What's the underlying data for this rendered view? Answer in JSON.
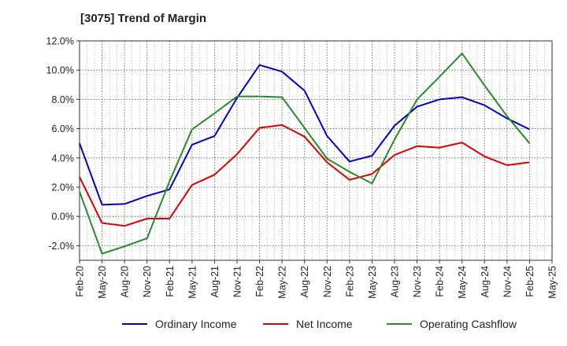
{
  "chart_data": {
    "type": "line",
    "title": "[3075]  Trend of Margin",
    "x": [
      "Feb-20",
      "May-20",
      "Aug-20",
      "Nov-20",
      "Feb-21",
      "May-21",
      "Aug-21",
      "Nov-21",
      "Feb-22",
      "May-22",
      "Aug-22",
      "Nov-22",
      "Feb-23",
      "May-23",
      "Aug-23",
      "Nov-23",
      "Feb-24",
      "May-24",
      "Aug-24",
      "Nov-24",
      "Feb-25",
      "May-25"
    ],
    "yticks": [
      "12.0%",
      "10.0%",
      "8.0%",
      "6.0%",
      "4.0%",
      "2.0%",
      "0.0%",
      "-2.0%"
    ],
    "ylim": [
      -3,
      12
    ],
    "grid": true,
    "legend_position": "bottom",
    "series": [
      {
        "name": "Ordinary Income",
        "color": "#0000cc",
        "values": [
          5.0,
          0.8,
          0.85,
          1.4,
          1.85,
          4.9,
          5.5,
          8.1,
          10.35,
          9.9,
          8.6,
          5.5,
          3.75,
          4.15,
          6.2,
          7.5,
          8.0,
          8.15,
          7.6,
          6.7,
          5.95,
          null
        ]
      },
      {
        "name": "Net Income",
        "color": "#dd0000",
        "values": [
          2.7,
          -0.45,
          -0.65,
          -0.15,
          -0.15,
          2.15,
          2.85,
          4.25,
          6.05,
          6.25,
          5.45,
          3.7,
          2.5,
          2.9,
          4.2,
          4.8,
          4.7,
          5.05,
          4.1,
          3.5,
          3.7,
          null
        ]
      },
      {
        "name": "Operating Cashflow",
        "color": "#2a8a2a",
        "values": [
          1.7,
          -2.55,
          -2.05,
          -1.5,
          2.4,
          5.95,
          7.05,
          8.2,
          8.2,
          8.15,
          6.05,
          3.95,
          3.05,
          2.25,
          5.25,
          8.0,
          9.55,
          11.15,
          8.95,
          6.85,
          5.0,
          null
        ]
      }
    ]
  }
}
